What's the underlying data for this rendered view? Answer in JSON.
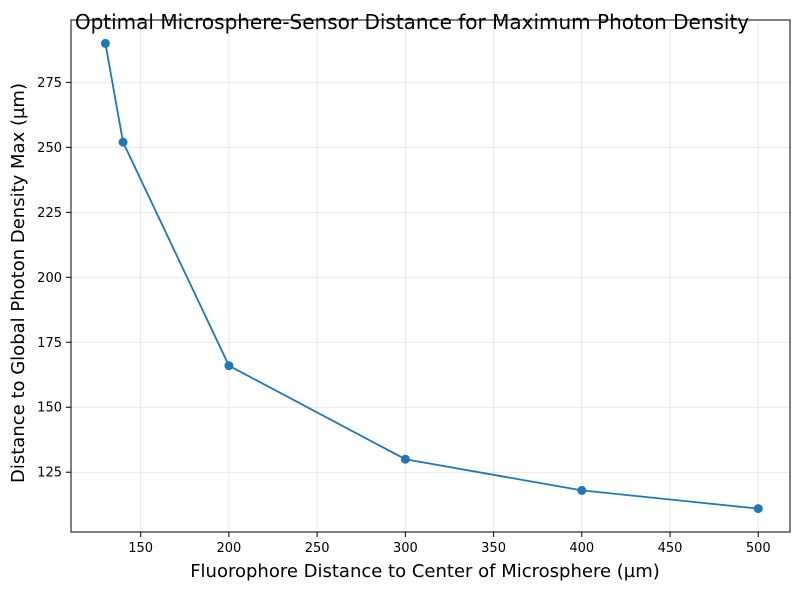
{
  "chart_data": {
    "type": "line",
    "title": "Optimal Microsphere-Sensor Distance for Maximum Photon Density",
    "xlabel": "Fluorophore Distance to Center of Microsphere (µm)",
    "ylabel": "Distance to Global Photon Density Max (µm)",
    "xlim": [
      110.5,
      518
    ],
    "ylim": [
      102,
      299
    ],
    "xticks": [
      150,
      200,
      250,
      300,
      350,
      400,
      450,
      500
    ],
    "yticks": [
      125,
      150,
      175,
      200,
      225,
      250,
      275
    ],
    "grid": true,
    "series": [
      {
        "name": "Distance to Global Photon Density Max",
        "color": "#1f77b4",
        "marker": "circle",
        "x": [
          130,
          140,
          200,
          300,
          400,
          500
        ],
        "y": [
          290,
          252,
          166,
          130,
          118,
          111
        ]
      }
    ]
  }
}
